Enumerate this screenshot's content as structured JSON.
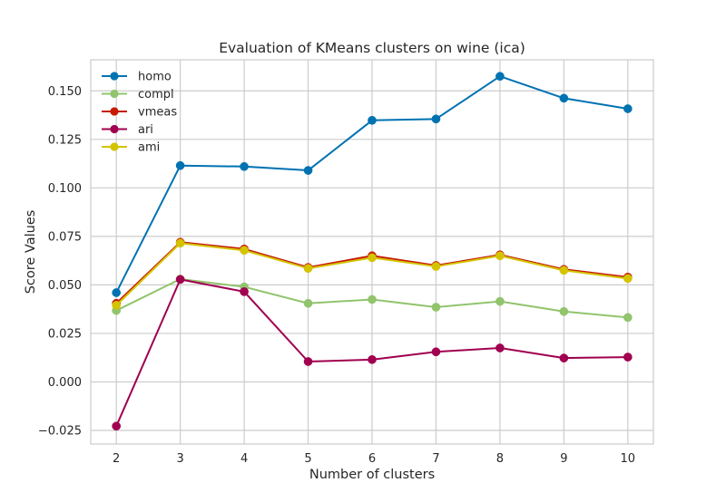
{
  "chart_data": {
    "type": "line",
    "title": "Evaluation of KMeans clusters on wine (ica)",
    "xlabel": "Number of clusters",
    "ylabel": "Score Values",
    "x": [
      2,
      3,
      4,
      5,
      6,
      7,
      8,
      9,
      10
    ],
    "xlim": [
      1.6,
      10.4
    ],
    "ylim": [
      -0.032,
      0.166
    ],
    "yticks": [
      -0.025,
      0.0,
      0.025,
      0.05,
      0.075,
      0.1,
      0.125,
      0.15
    ],
    "ytick_labels": [
      "−0.025",
      "0.000",
      "0.025",
      "0.050",
      "0.075",
      "0.100",
      "0.125",
      "0.150"
    ],
    "xtick_labels": [
      "2",
      "3",
      "4",
      "5",
      "6",
      "7",
      "8",
      "9",
      "10"
    ],
    "grid": true,
    "legend_position": "top-left",
    "series": [
      {
        "name": "homo",
        "color": "#0072B2",
        "values": [
          0.046,
          0.1115,
          0.111,
          0.109,
          0.1348,
          0.1355,
          0.1575,
          0.1462,
          0.1408
        ]
      },
      {
        "name": "compl",
        "color": "#91C46C",
        "values": [
          0.0368,
          0.053,
          0.049,
          0.0405,
          0.0425,
          0.0385,
          0.0415,
          0.0363,
          0.0332
        ]
      },
      {
        "name": "vmeas",
        "color": "#C51B00",
        "values": [
          0.0405,
          0.072,
          0.0685,
          0.059,
          0.065,
          0.06,
          0.0655,
          0.058,
          0.054
        ]
      },
      {
        "name": "ari",
        "color": "#A0004F",
        "values": [
          -0.0228,
          0.0528,
          0.0465,
          0.0105,
          0.0115,
          0.0155,
          0.0175,
          0.0123,
          0.0128
        ]
      },
      {
        "name": "ami",
        "color": "#D4C400",
        "values": [
          0.0395,
          0.0715,
          0.0678,
          0.0585,
          0.064,
          0.0595,
          0.065,
          0.0575,
          0.0533
        ]
      }
    ]
  }
}
